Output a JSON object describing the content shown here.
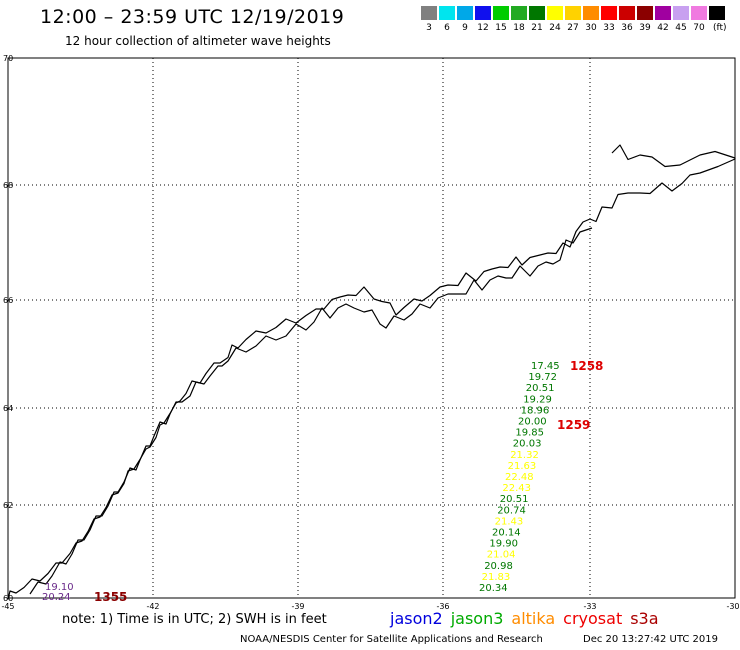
{
  "header": {
    "title": "12:00 – 23:59 UTC 12/19/2019",
    "subtitle": "12 hour collection of altimeter wave heights"
  },
  "color_scale": {
    "unit": "(ft)",
    "bins": [
      {
        "label": "3",
        "color": "#808080"
      },
      {
        "label": "6",
        "color": "#00e5ee"
      },
      {
        "label": "9",
        "color": "#00a8e8"
      },
      {
        "label": "12",
        "color": "#1010ee"
      },
      {
        "label": "15",
        "color": "#00cc00"
      },
      {
        "label": "18",
        "color": "#22aa22"
      },
      {
        "label": "21",
        "color": "#007700"
      },
      {
        "label": "24",
        "color": "#ffff00"
      },
      {
        "label": "27",
        "color": "#ffd200"
      },
      {
        "label": "30",
        "color": "#ff8c00"
      },
      {
        "label": "33",
        "color": "#ff0000"
      },
      {
        "label": "36",
        "color": "#cc0000"
      },
      {
        "label": "39",
        "color": "#8b0000"
      },
      {
        "label": "42",
        "color": "#a000a0"
      },
      {
        "label": "45",
        "color": "#c8a0f0"
      },
      {
        "label": "70",
        "color": "#f07ae0"
      },
      {
        "label": "",
        "color": "#000000"
      }
    ]
  },
  "map": {
    "lat_labels": [
      "70",
      "68",
      "66",
      "64",
      "62",
      "60"
    ],
    "lon_labels": [
      "-45",
      "-42",
      "-39",
      "-36",
      "-33",
      "-30"
    ],
    "track_values": [
      {
        "v": "17.45",
        "color": "#007700"
      },
      {
        "v": "19.72",
        "color": "#007700"
      },
      {
        "v": "20.51",
        "color": "#007700"
      },
      {
        "v": "19.29",
        "color": "#007700"
      },
      {
        "v": "18.96",
        "color": "#007700"
      },
      {
        "v": "20.00",
        "color": "#007700"
      },
      {
        "v": "19.85",
        "color": "#007700"
      },
      {
        "v": "20.03",
        "color": "#007700"
      },
      {
        "v": "21.32",
        "color": "#ffff00"
      },
      {
        "v": "21.63",
        "color": "#ffff00"
      },
      {
        "v": "22.48",
        "color": "#ffff00"
      },
      {
        "v": "22.43",
        "color": "#ffff00"
      },
      {
        "v": "20.51",
        "color": "#007700"
      },
      {
        "v": "20.74",
        "color": "#007700"
      },
      {
        "v": "21.43",
        "color": "#ffff00"
      },
      {
        "v": "20.14",
        "color": "#007700"
      },
      {
        "v": "19.90",
        "color": "#007700"
      },
      {
        "v": "21.04",
        "color": "#ffff00"
      },
      {
        "v": "20.98",
        "color": "#007700"
      },
      {
        "v": "21.83",
        "color": "#ffff00"
      },
      {
        "v": "20.34",
        "color": "#007700"
      }
    ],
    "pass_times": [
      "1258",
      "1259"
    ],
    "corner_values": [
      "19.10",
      "20.24"
    ],
    "corner_time": "1355"
  },
  "footer": {
    "note": "note:  1) Time is in UTC;  2) SWH is in feet",
    "satellites": [
      {
        "name": "jason2",
        "color": "#0000dd"
      },
      {
        "name": "jason3",
        "color": "#00aa00"
      },
      {
        "name": "altika",
        "color": "#ff8c00"
      },
      {
        "name": "cryosat",
        "color": "#ee0000"
      },
      {
        "name": "s3a",
        "color": "#aa0000"
      }
    ],
    "credit": "NOAA/NESDIS Center for Satellite Applications and Research",
    "timestamp": "Dec 20 13:27:42 UTC 2019"
  }
}
